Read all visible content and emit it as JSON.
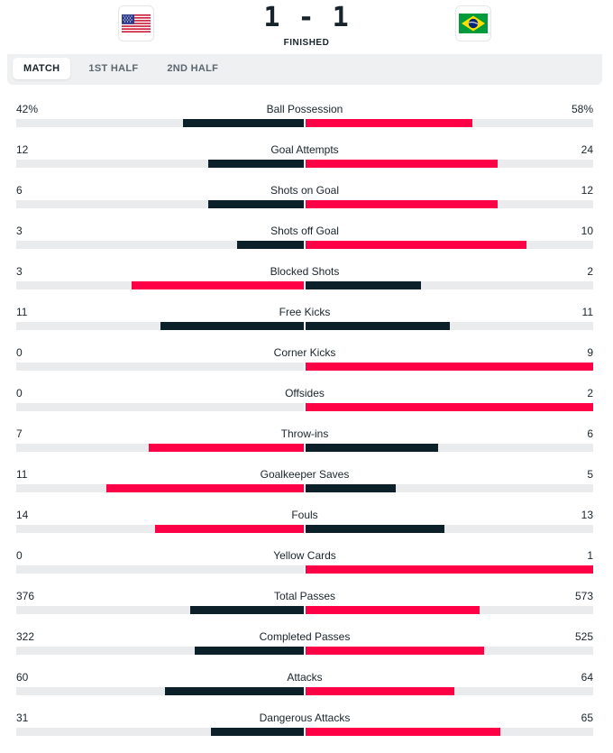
{
  "match": {
    "home_team_icon": "usa-flag-icon",
    "away_team_icon": "brazil-flag-icon",
    "score": "1 - 1",
    "status": "FINISHED"
  },
  "tabs": [
    {
      "label": "MATCH",
      "active": true
    },
    {
      "label": "1ST HALF",
      "active": false
    },
    {
      "label": "2ND HALF",
      "active": false
    }
  ],
  "colors": {
    "leading": "#ff0046",
    "trailing": "#0c2029",
    "track": "#e9ebec"
  },
  "stats": [
    {
      "name": "Ball Possession",
      "home": "42%",
      "away": "58%"
    },
    {
      "name": "Goal Attempts",
      "home": "12",
      "away": "24"
    },
    {
      "name": "Shots on Goal",
      "home": "6",
      "away": "12"
    },
    {
      "name": "Shots off Goal",
      "home": "3",
      "away": "10"
    },
    {
      "name": "Blocked Shots",
      "home": "3",
      "away": "2"
    },
    {
      "name": "Free Kicks",
      "home": "11",
      "away": "11"
    },
    {
      "name": "Corner Kicks",
      "home": "0",
      "away": "9"
    },
    {
      "name": "Offsides",
      "home": "0",
      "away": "2"
    },
    {
      "name": "Throw-ins",
      "home": "7",
      "away": "6"
    },
    {
      "name": "Goalkeeper Saves",
      "home": "11",
      "away": "5"
    },
    {
      "name": "Fouls",
      "home": "14",
      "away": "13"
    },
    {
      "name": "Yellow Cards",
      "home": "0",
      "away": "1"
    },
    {
      "name": "Total Passes",
      "home": "376",
      "away": "573"
    },
    {
      "name": "Completed Passes",
      "home": "322",
      "away": "525"
    },
    {
      "name": "Attacks",
      "home": "60",
      "away": "64"
    },
    {
      "name": "Dangerous Attacks",
      "home": "31",
      "away": "65"
    }
  ]
}
